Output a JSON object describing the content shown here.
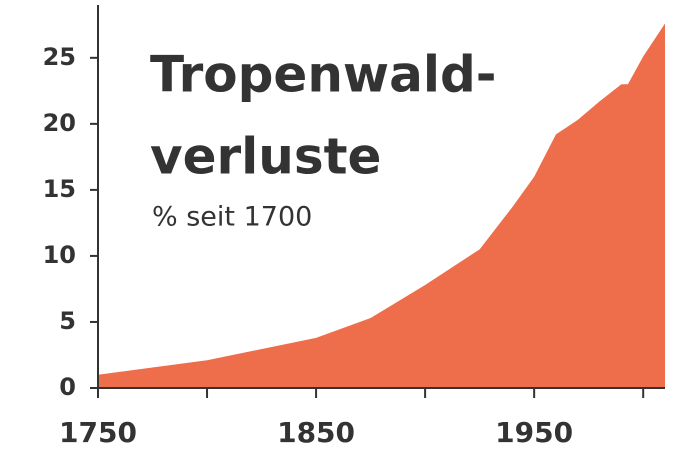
{
  "chart_data": {
    "type": "area",
    "title": [
      "Tropenwald-",
      "verluste"
    ],
    "subtitle": "% seit 1700",
    "x": [
      1750,
      1800,
      1850,
      1875,
      1900,
      1925,
      1940,
      1950,
      1960,
      1970,
      1980,
      1990,
      1993,
      2000,
      2010
    ],
    "values": [
      1.0,
      2.1,
      3.8,
      5.3,
      7.8,
      10.5,
      13.7,
      16.0,
      19.2,
      20.3,
      21.7,
      23.0,
      23.0,
      25.1,
      27.6
    ],
    "color": "#ee6d4b",
    "xlim": [
      1750,
      2010
    ],
    "xticks": [
      1750,
      1850,
      1950
    ],
    "xminor_ticks": [
      1800,
      1900,
      2000
    ],
    "ylim": [
      0,
      29
    ],
    "yticks": [
      0,
      5,
      10,
      15,
      20,
      25
    ]
  }
}
